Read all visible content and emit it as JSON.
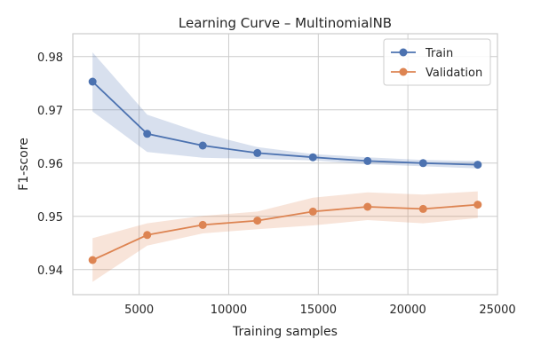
{
  "chart_data": {
    "type": "line",
    "title": "Learning Curve – MultinomialNB",
    "xlabel": "Training samples",
    "ylabel": "F1-score",
    "xlim": [
      1300,
      25000
    ],
    "ylim": [
      0.9353,
      0.9843
    ],
    "xticks": [
      5000,
      10000,
      15000,
      20000,
      25000
    ],
    "yticks": [
      0.94,
      0.95,
      0.96,
      0.97,
      0.98
    ],
    "grid": true,
    "legend_position": "top-right",
    "x": [
      2400,
      5450,
      8550,
      11600,
      14700,
      17750,
      20850,
      23900
    ],
    "series": [
      {
        "name": "Train",
        "color": "#4c72b0",
        "marker": "circle",
        "values": [
          0.9753,
          0.9655,
          0.9633,
          0.9619,
          0.9611,
          0.9604,
          0.96,
          0.9597
        ],
        "band_lower": [
          0.9697,
          0.9621,
          0.961,
          0.9608,
          0.9605,
          0.9598,
          0.9594,
          0.959
        ],
        "band_upper": [
          0.9808,
          0.9691,
          0.9656,
          0.963,
          0.9617,
          0.9611,
          0.9606,
          0.9604
        ]
      },
      {
        "name": "Validation",
        "color": "#dd8452",
        "marker": "circle",
        "values": [
          0.9418,
          0.9465,
          0.9484,
          0.9492,
          0.9509,
          0.9518,
          0.9514,
          0.9522
        ],
        "band_lower": [
          0.9377,
          0.9445,
          0.9468,
          0.9476,
          0.9483,
          0.9493,
          0.9487,
          0.9497
        ],
        "band_upper": [
          0.9459,
          0.9487,
          0.9501,
          0.9509,
          0.9535,
          0.9545,
          0.9541,
          0.9547
        ]
      }
    ]
  }
}
